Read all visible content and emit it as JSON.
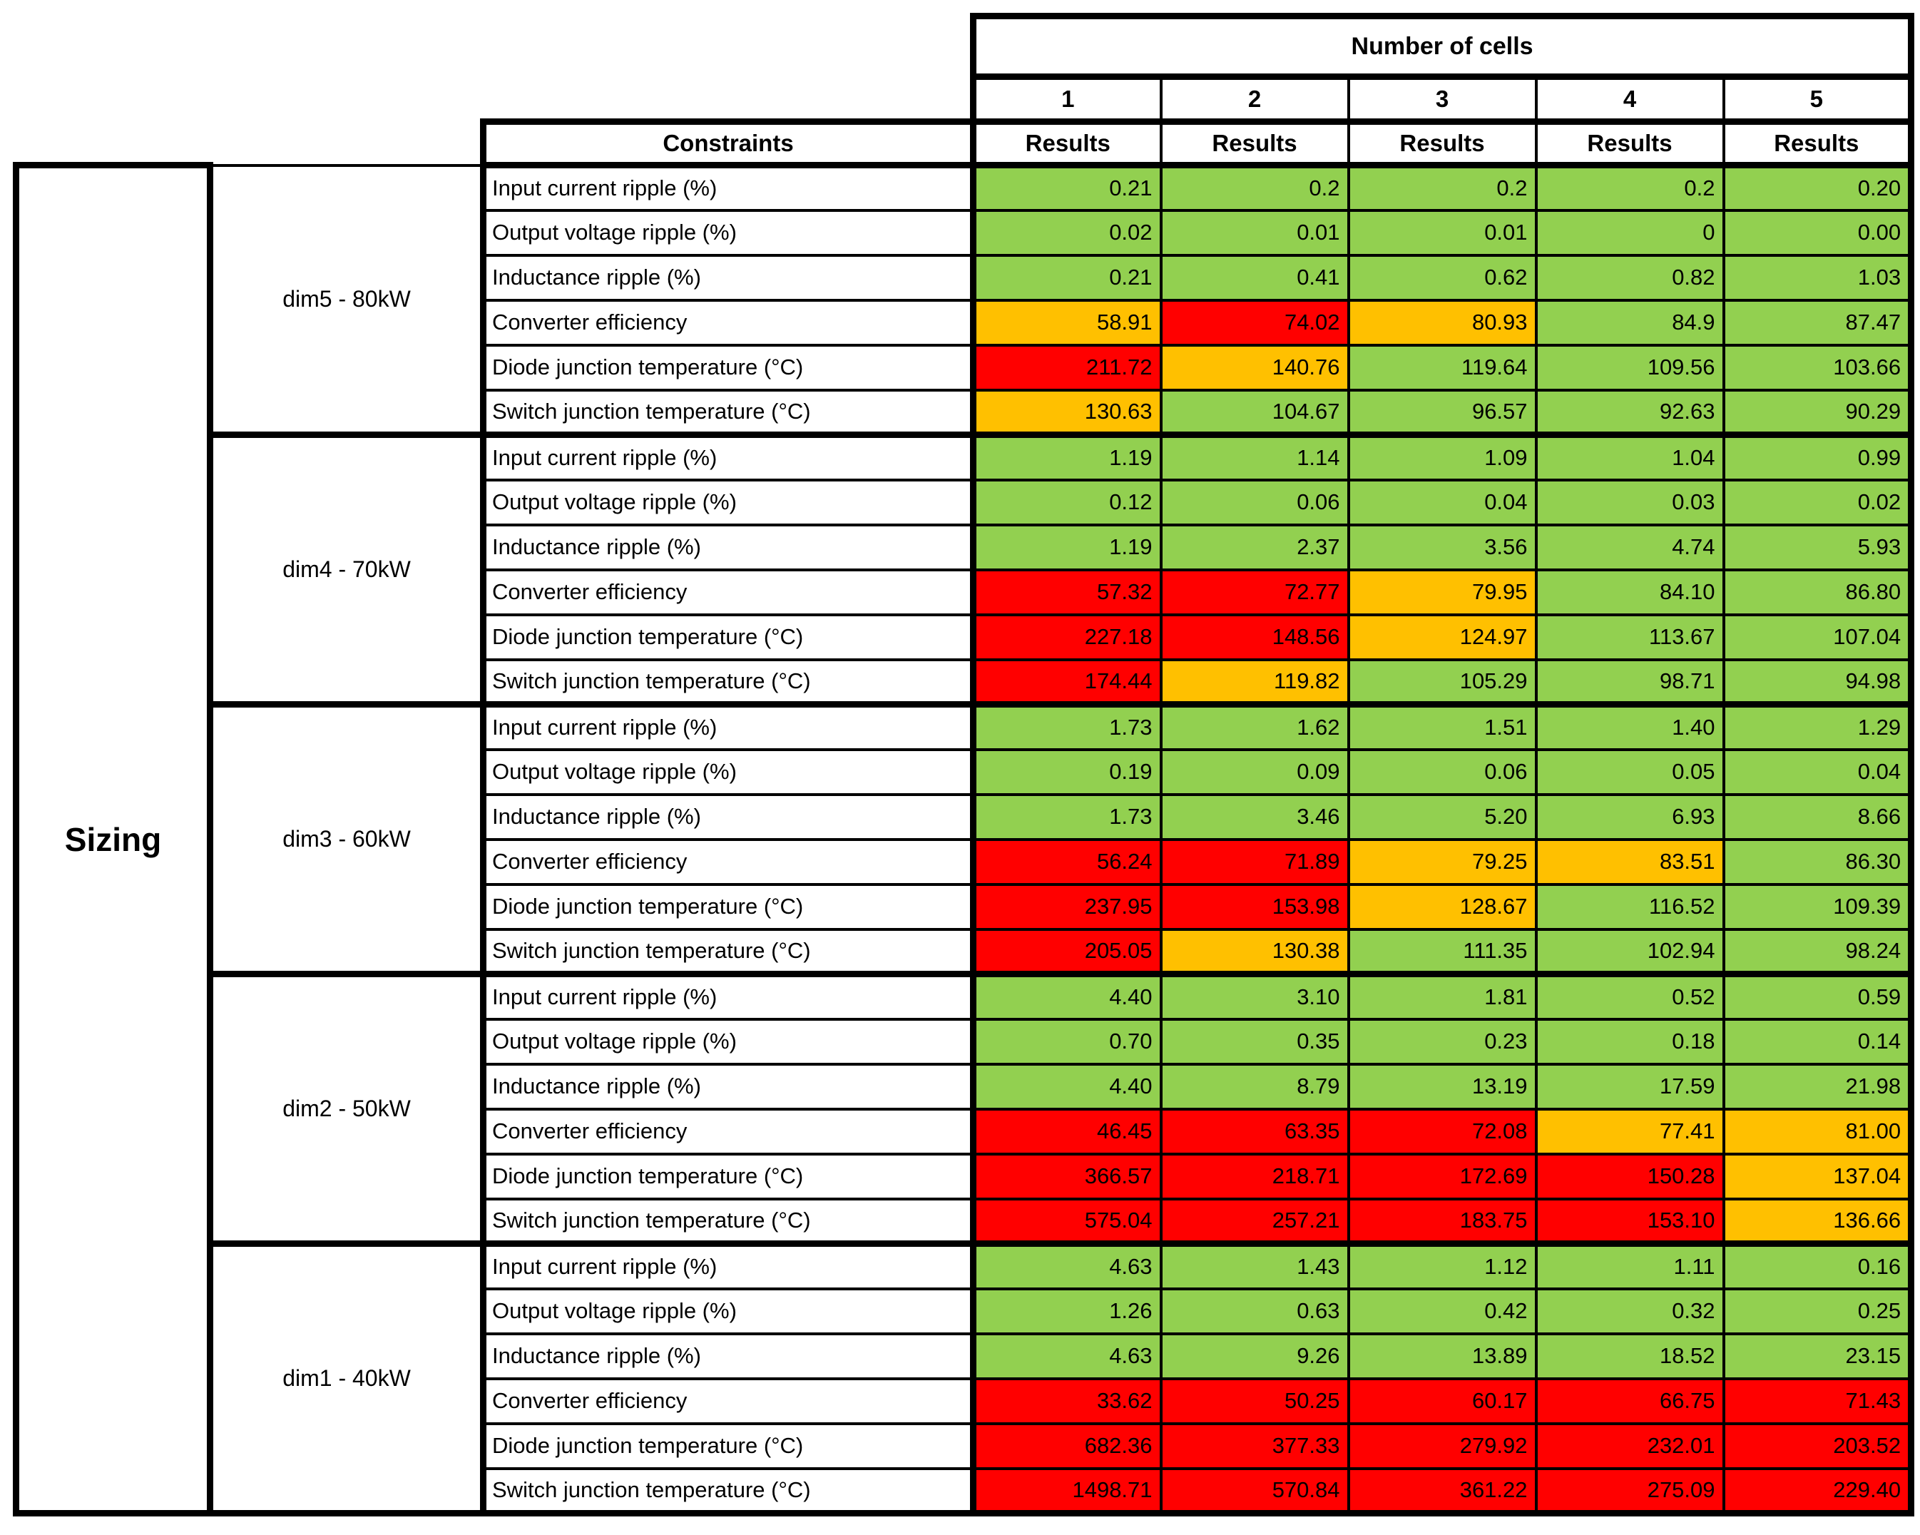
{
  "sizing_label": "Sizing",
  "header": {
    "number_of_cells_label": "Number of cells",
    "cell_counts": [
      "1",
      "2",
      "3",
      "4",
      "5"
    ],
    "constraints_label": "Constraints",
    "results_label": "Results"
  },
  "colors": {
    "g": "#92D050",
    "o": "#FFC000",
    "r": "#FF0000"
  },
  "groups": [
    {
      "label": "dim5 - 80kW",
      "rows": [
        {
          "constraint": "Input current ripple (%)",
          "values": [
            {
              "v": "0.21",
              "s": "g"
            },
            {
              "v": "0.2",
              "s": "g"
            },
            {
              "v": "0.2",
              "s": "g"
            },
            {
              "v": "0.2",
              "s": "g"
            },
            {
              "v": "0.20",
              "s": "g"
            }
          ]
        },
        {
          "constraint": "Output voltage ripple (%)",
          "values": [
            {
              "v": "0.02",
              "s": "g"
            },
            {
              "v": "0.01",
              "s": "g"
            },
            {
              "v": "0.01",
              "s": "g"
            },
            {
              "v": "0",
              "s": "g"
            },
            {
              "v": "0.00",
              "s": "g"
            }
          ]
        },
        {
          "constraint": "Inductance ripple (%)",
          "values": [
            {
              "v": "0.21",
              "s": "g"
            },
            {
              "v": "0.41",
              "s": "g"
            },
            {
              "v": "0.62",
              "s": "g"
            },
            {
              "v": "0.82",
              "s": "g"
            },
            {
              "v": "1.03",
              "s": "g"
            }
          ]
        },
        {
          "constraint": "Converter efficiency",
          "values": [
            {
              "v": "58.91",
              "s": "o"
            },
            {
              "v": "74.02",
              "s": "r"
            },
            {
              "v": "80.93",
              "s": "o"
            },
            {
              "v": "84.9",
              "s": "g"
            },
            {
              "v": "87.47",
              "s": "g"
            }
          ]
        },
        {
          "constraint": "Diode junction temperature (°C)",
          "values": [
            {
              "v": "211.72",
              "s": "r"
            },
            {
              "v": "140.76",
              "s": "o"
            },
            {
              "v": "119.64",
              "s": "g"
            },
            {
              "v": "109.56",
              "s": "g"
            },
            {
              "v": "103.66",
              "s": "g"
            }
          ]
        },
        {
          "constraint": "Switch junction temperature (°C)",
          "values": [
            {
              "v": "130.63",
              "s": "o"
            },
            {
              "v": "104.67",
              "s": "g"
            },
            {
              "v": "96.57",
              "s": "g"
            },
            {
              "v": "92.63",
              "s": "g"
            },
            {
              "v": "90.29",
              "s": "g"
            }
          ]
        }
      ]
    },
    {
      "label": "dim4 - 70kW",
      "rows": [
        {
          "constraint": "Input current ripple (%)",
          "values": [
            {
              "v": "1.19",
              "s": "g"
            },
            {
              "v": "1.14",
              "s": "g"
            },
            {
              "v": "1.09",
              "s": "g"
            },
            {
              "v": "1.04",
              "s": "g"
            },
            {
              "v": "0.99",
              "s": "g"
            }
          ]
        },
        {
          "constraint": "Output voltage ripple (%)",
          "values": [
            {
              "v": "0.12",
              "s": "g"
            },
            {
              "v": "0.06",
              "s": "g"
            },
            {
              "v": "0.04",
              "s": "g"
            },
            {
              "v": "0.03",
              "s": "g"
            },
            {
              "v": "0.02",
              "s": "g"
            }
          ]
        },
        {
          "constraint": "Inductance ripple (%)",
          "values": [
            {
              "v": "1.19",
              "s": "g"
            },
            {
              "v": "2.37",
              "s": "g"
            },
            {
              "v": "3.56",
              "s": "g"
            },
            {
              "v": "4.74",
              "s": "g"
            },
            {
              "v": "5.93",
              "s": "g"
            }
          ]
        },
        {
          "constraint": "Converter efficiency",
          "values": [
            {
              "v": "57.32",
              "s": "r"
            },
            {
              "v": "72.77",
              "s": "r"
            },
            {
              "v": "79.95",
              "s": "o"
            },
            {
              "v": "84.10",
              "s": "g"
            },
            {
              "v": "86.80",
              "s": "g"
            }
          ]
        },
        {
          "constraint": "Diode junction temperature (°C)",
          "values": [
            {
              "v": "227.18",
              "s": "r"
            },
            {
              "v": "148.56",
              "s": "r"
            },
            {
              "v": "124.97",
              "s": "o"
            },
            {
              "v": "113.67",
              "s": "g"
            },
            {
              "v": "107.04",
              "s": "g"
            }
          ]
        },
        {
          "constraint": "Switch junction temperature (°C)",
          "values": [
            {
              "v": "174.44",
              "s": "r"
            },
            {
              "v": "119.82",
              "s": "o"
            },
            {
              "v": "105.29",
              "s": "g"
            },
            {
              "v": "98.71",
              "s": "g"
            },
            {
              "v": "94.98",
              "s": "g"
            }
          ]
        }
      ]
    },
    {
      "label": "dim3 - 60kW",
      "rows": [
        {
          "constraint": "Input current ripple (%)",
          "values": [
            {
              "v": "1.73",
              "s": "g"
            },
            {
              "v": "1.62",
              "s": "g"
            },
            {
              "v": "1.51",
              "s": "g"
            },
            {
              "v": "1.40",
              "s": "g"
            },
            {
              "v": "1.29",
              "s": "g"
            }
          ]
        },
        {
          "constraint": "Output voltage ripple (%)",
          "values": [
            {
              "v": "0.19",
              "s": "g"
            },
            {
              "v": "0.09",
              "s": "g"
            },
            {
              "v": "0.06",
              "s": "g"
            },
            {
              "v": "0.05",
              "s": "g"
            },
            {
              "v": "0.04",
              "s": "g"
            }
          ]
        },
        {
          "constraint": "Inductance ripple (%)",
          "values": [
            {
              "v": "1.73",
              "s": "g"
            },
            {
              "v": "3.46",
              "s": "g"
            },
            {
              "v": "5.20",
              "s": "g"
            },
            {
              "v": "6.93",
              "s": "g"
            },
            {
              "v": "8.66",
              "s": "g"
            }
          ]
        },
        {
          "constraint": "Converter efficiency",
          "values": [
            {
              "v": "56.24",
              "s": "r"
            },
            {
              "v": "71.89",
              "s": "r"
            },
            {
              "v": "79.25",
              "s": "o"
            },
            {
              "v": "83.51",
              "s": "o"
            },
            {
              "v": "86.30",
              "s": "g"
            }
          ]
        },
        {
          "constraint": "Diode junction temperature (°C)",
          "values": [
            {
              "v": "237.95",
              "s": "r"
            },
            {
              "v": "153.98",
              "s": "r"
            },
            {
              "v": "128.67",
              "s": "o"
            },
            {
              "v": "116.52",
              "s": "g"
            },
            {
              "v": "109.39",
              "s": "g"
            }
          ]
        },
        {
          "constraint": "Switch junction temperature (°C)",
          "values": [
            {
              "v": "205.05",
              "s": "r"
            },
            {
              "v": "130.38",
              "s": "o"
            },
            {
              "v": "111.35",
              "s": "g"
            },
            {
              "v": "102.94",
              "s": "g"
            },
            {
              "v": "98.24",
              "s": "g"
            }
          ]
        }
      ]
    },
    {
      "label": "dim2 - 50kW",
      "rows": [
        {
          "constraint": "Input current ripple (%)",
          "values": [
            {
              "v": "4.40",
              "s": "g"
            },
            {
              "v": "3.10",
              "s": "g"
            },
            {
              "v": "1.81",
              "s": "g"
            },
            {
              "v": "0.52",
              "s": "g"
            },
            {
              "v": "0.59",
              "s": "g"
            }
          ]
        },
        {
          "constraint": "Output voltage ripple (%)",
          "values": [
            {
              "v": "0.70",
              "s": "g"
            },
            {
              "v": "0.35",
              "s": "g"
            },
            {
              "v": "0.23",
              "s": "g"
            },
            {
              "v": "0.18",
              "s": "g"
            },
            {
              "v": "0.14",
              "s": "g"
            }
          ]
        },
        {
          "constraint": "Inductance ripple (%)",
          "values": [
            {
              "v": "4.40",
              "s": "g"
            },
            {
              "v": "8.79",
              "s": "g"
            },
            {
              "v": "13.19",
              "s": "g"
            },
            {
              "v": "17.59",
              "s": "g"
            },
            {
              "v": "21.98",
              "s": "g"
            }
          ]
        },
        {
          "constraint": "Converter efficiency",
          "values": [
            {
              "v": "46.45",
              "s": "r"
            },
            {
              "v": "63.35",
              "s": "r"
            },
            {
              "v": "72.08",
              "s": "r"
            },
            {
              "v": "77.41",
              "s": "o"
            },
            {
              "v": "81.00",
              "s": "o"
            }
          ]
        },
        {
          "constraint": "Diode junction temperature (°C)",
          "values": [
            {
              "v": "366.57",
              "s": "r"
            },
            {
              "v": "218.71",
              "s": "r"
            },
            {
              "v": "172.69",
              "s": "r"
            },
            {
              "v": "150.28",
              "s": "r"
            },
            {
              "v": "137.04",
              "s": "o"
            }
          ]
        },
        {
          "constraint": "Switch junction temperature (°C)",
          "values": [
            {
              "v": "575.04",
              "s": "r"
            },
            {
              "v": "257.21",
              "s": "r"
            },
            {
              "v": "183.75",
              "s": "r"
            },
            {
              "v": "153.10",
              "s": "r"
            },
            {
              "v": "136.66",
              "s": "o"
            }
          ]
        }
      ]
    },
    {
      "label": "dim1 - 40kW",
      "rows": [
        {
          "constraint": "Input current ripple (%)",
          "values": [
            {
              "v": "4.63",
              "s": "g"
            },
            {
              "v": "1.43",
              "s": "g"
            },
            {
              "v": "1.12",
              "s": "g"
            },
            {
              "v": "1.11",
              "s": "g"
            },
            {
              "v": "0.16",
              "s": "g"
            }
          ]
        },
        {
          "constraint": "Output voltage ripple (%)",
          "values": [
            {
              "v": "1.26",
              "s": "g"
            },
            {
              "v": "0.63",
              "s": "g"
            },
            {
              "v": "0.42",
              "s": "g"
            },
            {
              "v": "0.32",
              "s": "g"
            },
            {
              "v": "0.25",
              "s": "g"
            }
          ]
        },
        {
          "constraint": "Inductance ripple (%)",
          "values": [
            {
              "v": "4.63",
              "s": "g"
            },
            {
              "v": "9.26",
              "s": "g"
            },
            {
              "v": "13.89",
              "s": "g"
            },
            {
              "v": "18.52",
              "s": "g"
            },
            {
              "v": "23.15",
              "s": "g"
            }
          ]
        },
        {
          "constraint": "Converter efficiency",
          "values": [
            {
              "v": "33.62",
              "s": "r"
            },
            {
              "v": "50.25",
              "s": "r"
            },
            {
              "v": "60.17",
              "s": "r"
            },
            {
              "v": "66.75",
              "s": "r"
            },
            {
              "v": "71.43",
              "s": "r"
            }
          ]
        },
        {
          "constraint": "Diode junction temperature (°C)",
          "values": [
            {
              "v": "682.36",
              "s": "r"
            },
            {
              "v": "377.33",
              "s": "r"
            },
            {
              "v": "279.92",
              "s": "r"
            },
            {
              "v": "232.01",
              "s": "r"
            },
            {
              "v": "203.52",
              "s": "r"
            }
          ]
        },
        {
          "constraint": "Switch junction temperature (°C)",
          "values": [
            {
              "v": "1498.71",
              "s": "r"
            },
            {
              "v": "570.84",
              "s": "r"
            },
            {
              "v": "361.22",
              "s": "r"
            },
            {
              "v": "275.09",
              "s": "r"
            },
            {
              "v": "229.40",
              "s": "r"
            }
          ]
        }
      ]
    }
  ]
}
